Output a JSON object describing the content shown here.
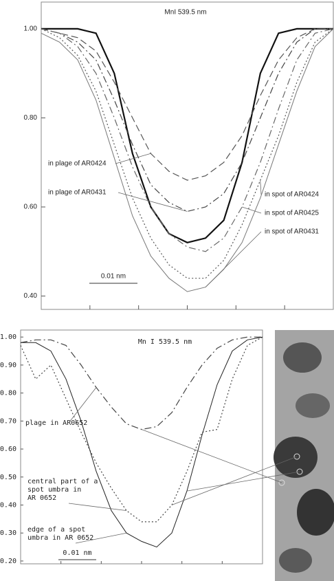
{
  "chart_data": [
    {
      "type": "line",
      "title": "MnI 539.5 nm",
      "categories": [
        null,
        null,
        null,
        null,
        null,
        null,
        null,
        null,
        null,
        null,
        null,
        null,
        null,
        null,
        null,
        null,
        null
      ],
      "ylim": [
        0.37,
        1.06
      ],
      "yticks": [
        {
          "value": 1,
          "label": "1.00"
        },
        {
          "value": 0.8,
          "label": "0.80"
        },
        {
          "value": 0.6,
          "label": "0.60"
        },
        {
          "value": 0.4,
          "label": "0.40"
        }
      ],
      "series": [
        {
          "color": "#111",
          "style": "solid-bold",
          "values": [
            1.0,
            1.0,
            1.0,
            0.99,
            0.9,
            0.72,
            0.6,
            0.54,
            0.52,
            0.53,
            0.57,
            0.7,
            0.9,
            0.99,
            1.0,
            1.0,
            1.0
          ]
        },
        {
          "color": "#555",
          "style": "dashed",
          "values": [
            1.0,
            0.99,
            0.98,
            0.95,
            0.88,
            0.8,
            0.72,
            0.68,
            0.66,
            0.67,
            0.7,
            0.76,
            0.85,
            0.93,
            0.98,
            1.0,
            1.0
          ]
        },
        {
          "color": "#444",
          "style": "dashdot",
          "values": [
            1.0,
            0.99,
            0.97,
            0.93,
            0.84,
            0.74,
            0.65,
            0.61,
            0.59,
            0.6,
            0.63,
            0.7,
            0.8,
            0.9,
            0.97,
            1.0,
            1.0
          ]
        },
        {
          "color": "#666",
          "style": "dashdot",
          "values": [
            1.0,
            0.99,
            0.96,
            0.9,
            0.8,
            0.69,
            0.6,
            0.54,
            0.51,
            0.5,
            0.53,
            0.6,
            0.7,
            0.82,
            0.93,
            0.99,
            1.0
          ]
        },
        {
          "color": "#555",
          "style": "dotted",
          "values": [
            1.0,
            0.98,
            0.94,
            0.86,
            0.74,
            0.62,
            0.53,
            0.47,
            0.44,
            0.44,
            0.48,
            0.56,
            0.66,
            0.76,
            0.88,
            0.97,
            1.0
          ]
        },
        {
          "color": "#777",
          "style": "solid",
          "values": [
            0.99,
            0.97,
            0.93,
            0.84,
            0.71,
            0.58,
            0.49,
            0.44,
            0.41,
            0.42,
            0.46,
            0.52,
            0.62,
            0.74,
            0.86,
            0.96,
            1.0
          ]
        }
      ],
      "annotations": [
        {
          "lines": [
            "in plage of AR0424"
          ],
          "series": 1
        },
        {
          "lines": [
            "in plage of AR0431"
          ],
          "series": 2
        },
        {
          "lines": [
            "in spot of AR0424"
          ],
          "series": 4
        },
        {
          "lines": [
            "in spot of AR0425"
          ],
          "series": 3
        },
        {
          "lines": [
            "in spot of AR0431"
          ],
          "series": 5
        }
      ],
      "scale_label": "0.01 nm"
    },
    {
      "type": "line",
      "title": "Mn I 539.5 nm",
      "categories": [
        null,
        null,
        null,
        null,
        null,
        null,
        null,
        null,
        null,
        null,
        null,
        null,
        null,
        null,
        null,
        null,
        null
      ],
      "ylim": [
        0.19,
        1.025
      ],
      "yticks": [
        {
          "value": 1,
          "label": "1.00"
        },
        {
          "value": 0.9,
          "label": "0.90"
        },
        {
          "value": 0.8,
          "label": "0.80"
        },
        {
          "value": 0.7,
          "label": "0.70"
        },
        {
          "value": 0.6,
          "label": "0.60"
        },
        {
          "value": 0.5,
          "label": "0.50"
        },
        {
          "value": 0.4,
          "label": "0.40"
        },
        {
          "value": 0.3,
          "label": "0.30"
        },
        {
          "value": 0.2,
          "label": "0.20"
        }
      ],
      "series": [
        {
          "color": "#444",
          "style": "dashdot",
          "values": [
            0.98,
            0.99,
            0.99,
            0.97,
            0.9,
            0.82,
            0.75,
            0.69,
            0.67,
            0.68,
            0.73,
            0.82,
            0.9,
            0.96,
            0.99,
            1.0,
            1.0
          ]
        },
        {
          "color": "#444",
          "style": "dotted",
          "values": [
            0.97,
            0.85,
            0.9,
            0.78,
            0.66,
            0.55,
            0.46,
            0.38,
            0.34,
            0.34,
            0.4,
            0.52,
            0.66,
            0.67,
            0.85,
            0.97,
            1.0
          ]
        },
        {
          "color": "#222",
          "style": "solid",
          "values": [
            0.98,
            0.98,
            0.95,
            0.85,
            0.7,
            0.52,
            0.38,
            0.3,
            0.27,
            0.25,
            0.3,
            0.45,
            0.65,
            0.83,
            0.95,
            0.99,
            1.0
          ]
        }
      ],
      "annotations": [
        {
          "lines": [
            "plage in AR0652"
          ],
          "series": 0
        },
        {
          "lines": [
            "central part of a",
            "spot umbra in",
            "AR 0652"
          ],
          "series": 1
        },
        {
          "lines": [
            "edge of a spot",
            "umbra in AR 0652"
          ],
          "series": 2
        }
      ],
      "scale_label": "0.01 nm"
    }
  ]
}
